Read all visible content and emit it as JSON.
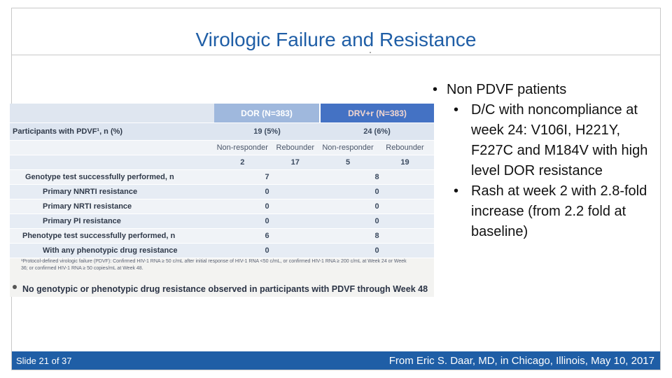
{
  "title": "Virologic Failure and Resistance",
  "table": {
    "col_dor": "DOR (N=383)",
    "col_drv": "DRV+r (N=383)",
    "row_pdvf_label": "Participants with PDVF¹, n (%)",
    "row_pdvf_dor": "19  (5%)",
    "row_pdvf_drv": "24  (6%)",
    "subheaders": [
      "Non-responder",
      "Rebounder",
      "Non-responder",
      "Rebounder"
    ],
    "split_values": [
      "2",
      "17",
      "5",
      "19"
    ],
    "rows": [
      {
        "label": "Genotype test successfully performed, n",
        "dor": "7",
        "drv": "8"
      },
      {
        "label": "Primary NNRTI resistance",
        "dor": "0",
        "drv": "0"
      },
      {
        "label": "Primary NRTI resistance",
        "dor": "0",
        "drv": "0"
      },
      {
        "label": "Primary PI resistance",
        "dor": "0",
        "drv": "0"
      },
      {
        "label": "Phenotype test successfully performed, n",
        "dor": "6",
        "drv": "8"
      },
      {
        "label": "With any phenotypic drug resistance",
        "dor": "0",
        "drv": "0"
      }
    ],
    "footnote": "¹Protocol-defined virologic failure (PDVF): Confirmed HIV-1 RNA ≥ 50 c/mL after initial response of HIV-1 RNA <50 c/mL, or confirmed HIV-1 RNA ≥ 200 c/mL at Week 24 or Week 36; or confirmed HIV-1 RNA ≥ 50 copies/mL at Week 48.",
    "summary": "No genotypic or phenotypic drug resistance observed in participants with PDVF through Week 48"
  },
  "bullets": {
    "main": "Non PDVF patients",
    "sub1": "D/C with noncompliance at week 24: V106I, H221Y, F227C and M184V with high level DOR resistance",
    "sub2": "Rash at week 2 with 2.8-fold increase (from 2.2 fold at baseline)"
  },
  "footer": {
    "slide_number": "Slide 21 of 37",
    "source": "From Eric S. Daar, MD, in Chicago, Illinois, May 10, 2017"
  },
  "colors": {
    "title": "#1f5ea6",
    "footer_bg": "#1f5ea6",
    "table_header": "#4472c4"
  }
}
